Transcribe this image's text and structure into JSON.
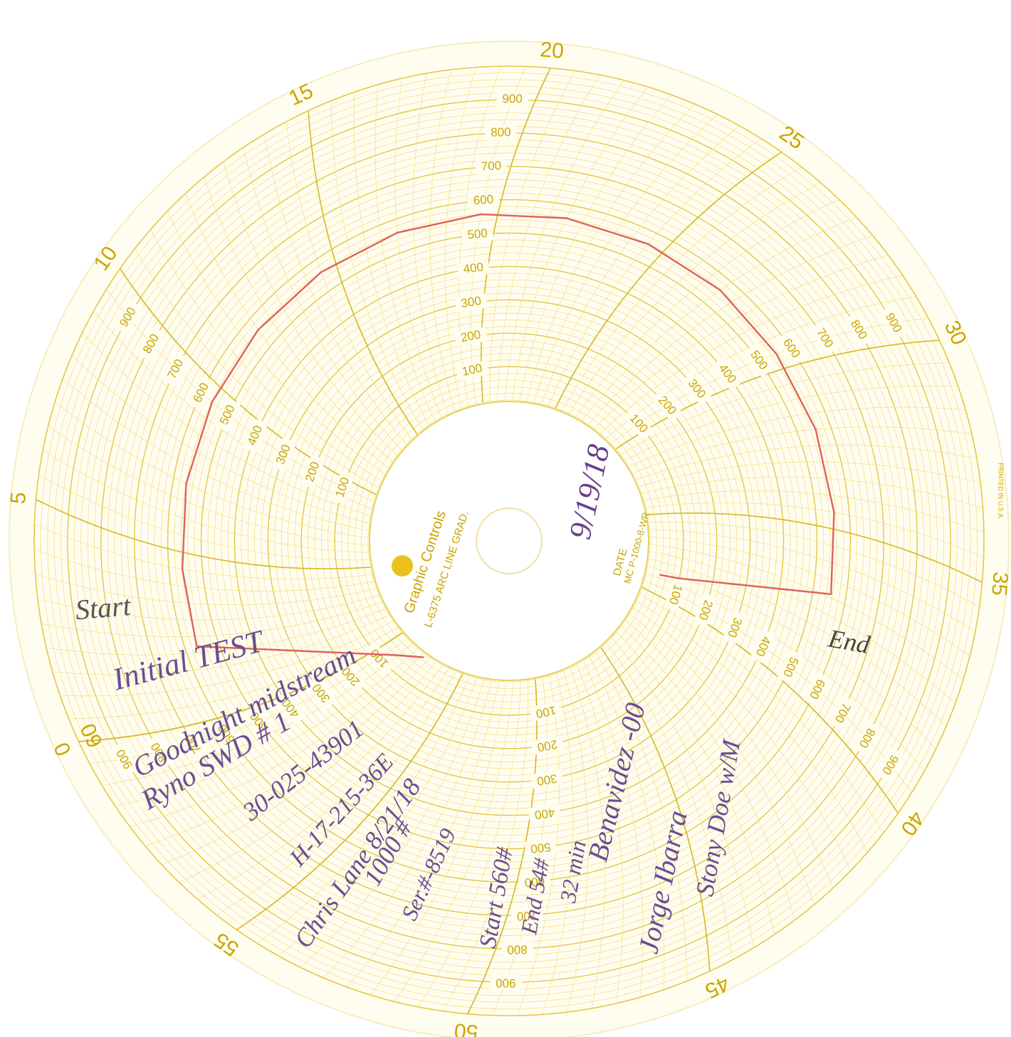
{
  "chart_data": {
    "type": "circular-chart",
    "xlim": [
      0,
      60
    ],
    "xticks": [
      0,
      5,
      10,
      15,
      20,
      25,
      30,
      35,
      40,
      45,
      50,
      55,
      60
    ],
    "rlim": [
      0,
      1000
    ],
    "rticks": [
      100,
      200,
      300,
      400,
      500,
      600,
      700,
      800,
      900
    ],
    "series": [
      {
        "color": "#e0605a",
        "x": [
          57.8,
          59.1,
          2.2,
          4.5,
          7,
          9.5,
          12,
          14.5,
          17,
          19.5,
          22,
          24.5,
          27,
          29.5,
          32,
          34.5,
          36.9,
          38.6,
          38.8
        ],
        "values": [
          10,
          60,
          565,
          560,
          560,
          560,
          560,
          560,
          560,
          560,
          560,
          560,
          560,
          555,
          555,
          555,
          555,
          100,
          40
        ]
      }
    ],
    "hub_text": [
      "Graphic Controls",
      "L-6375 ARC LINE GRAD.",
      "DATE",
      "MC P-1000-8-WR",
      "9/19/18"
    ],
    "printed_note": "PRINTED IN U.S.A.",
    "annotations": [
      "Start",
      "Initial TEST",
      "Goodnight midstream",
      "Ryno SWD # 1",
      "30-025-43901",
      "H-17-215-36E",
      "Chris Lane 8/21/18",
      "1000 #",
      "Ser.#-8519",
      "Start 560#",
      "End 54#",
      "32 min",
      "Benavidez -00",
      "Jorge Ibarra",
      "Stony Doe w/M",
      "End"
    ]
  }
}
